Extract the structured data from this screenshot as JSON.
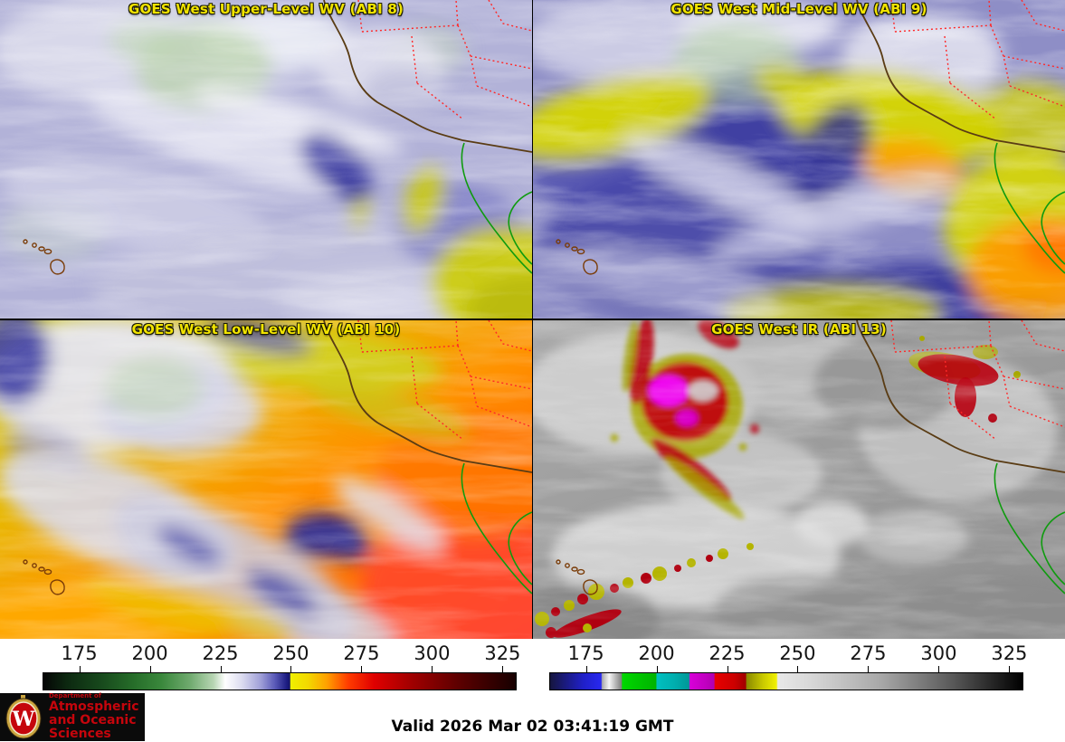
{
  "panels": [
    {
      "id": "abi8",
      "title": "GOES West Upper-Level WV (ABI 8)"
    },
    {
      "id": "abi9",
      "title": "GOES West Mid-Level WV (ABI 9)"
    },
    {
      "id": "abi10",
      "title": "GOES West Low-Level WV (ABI 10)"
    },
    {
      "id": "abi13",
      "title": "GOES West IR (ABI 13)"
    }
  ],
  "title_color": "#f2e400",
  "map_overlay_colors": {
    "state_borders_dotted": "#ff2828",
    "coastline": "#5a3c14",
    "mexico_baja_outline": "#0f9b0f",
    "hawaii_outline": "#7a3c08"
  },
  "colorbars": [
    {
      "name": "water-vapor-enhancement",
      "ticks": [
        175,
        200,
        225,
        250,
        275,
        300,
        325
      ],
      "range": [
        162,
        330
      ],
      "stops": [
        [
          0.0,
          "#050505"
        ],
        [
          0.05,
          "#0c2810"
        ],
        [
          0.12,
          "#17481c"
        ],
        [
          0.19,
          "#266d29"
        ],
        [
          0.25,
          "#3a883c"
        ],
        [
          0.31,
          "#6faa6e"
        ],
        [
          0.36,
          "#b7d5b3"
        ],
        [
          0.385,
          "#ffffff"
        ],
        [
          0.42,
          "#dcdcf0"
        ],
        [
          0.46,
          "#a0a0d8"
        ],
        [
          0.49,
          "#5a5ab8"
        ],
        [
          0.515,
          "#1d1d82"
        ],
        [
          0.522,
          "#14146a"
        ],
        [
          0.523,
          "#f0f000"
        ],
        [
          0.56,
          "#f2d800"
        ],
        [
          0.6,
          "#ffa000"
        ],
        [
          0.645,
          "#ff3c00"
        ],
        [
          0.7,
          "#e00000"
        ],
        [
          0.78,
          "#a00000"
        ],
        [
          0.88,
          "#5c0000"
        ],
        [
          1.0,
          "#170000"
        ]
      ]
    },
    {
      "name": "ir-enhancement",
      "ticks": [
        175,
        200,
        225,
        250,
        275,
        300,
        325
      ],
      "range": [
        162,
        330
      ],
      "stops": [
        [
          0.0,
          "#16163e"
        ],
        [
          0.03,
          "#1a1a7a"
        ],
        [
          0.07,
          "#2020c8"
        ],
        [
          0.108,
          "#2828f0"
        ],
        [
          0.11,
          "#aaaaaa"
        ],
        [
          0.125,
          "#f5f5f5"
        ],
        [
          0.151,
          "#808080"
        ],
        [
          0.153,
          "#00d800"
        ],
        [
          0.19,
          "#00c400"
        ],
        [
          0.224,
          "#00b400"
        ],
        [
          0.226,
          "#00c0c0"
        ],
        [
          0.26,
          "#00b0b0"
        ],
        [
          0.294,
          "#009898"
        ],
        [
          0.296,
          "#d800d8"
        ],
        [
          0.33,
          "#c000c0"
        ],
        [
          0.347,
          "#b000b0"
        ],
        [
          0.349,
          "#e80000"
        ],
        [
          0.39,
          "#cc0000"
        ],
        [
          0.414,
          "#a00000"
        ],
        [
          0.416,
          "#8a8a00"
        ],
        [
          0.45,
          "#c8c800"
        ],
        [
          0.479,
          "#f0f000"
        ],
        [
          0.482,
          "#e8e8e8"
        ],
        [
          0.55,
          "#d8d8d8"
        ],
        [
          0.7,
          "#a8a8a8"
        ],
        [
          0.85,
          "#5a5a5a"
        ],
        [
          1.0,
          "#000000"
        ]
      ]
    }
  ],
  "footer": {
    "valid": "Valid 2026 Mar 02 03:41:19 GMT",
    "logo": {
      "dept": "Department of",
      "line1": "Atmospheric",
      "line2": "and Oceanic Sciences",
      "monogram": "W",
      "text_color": "#c5050c"
    }
  }
}
